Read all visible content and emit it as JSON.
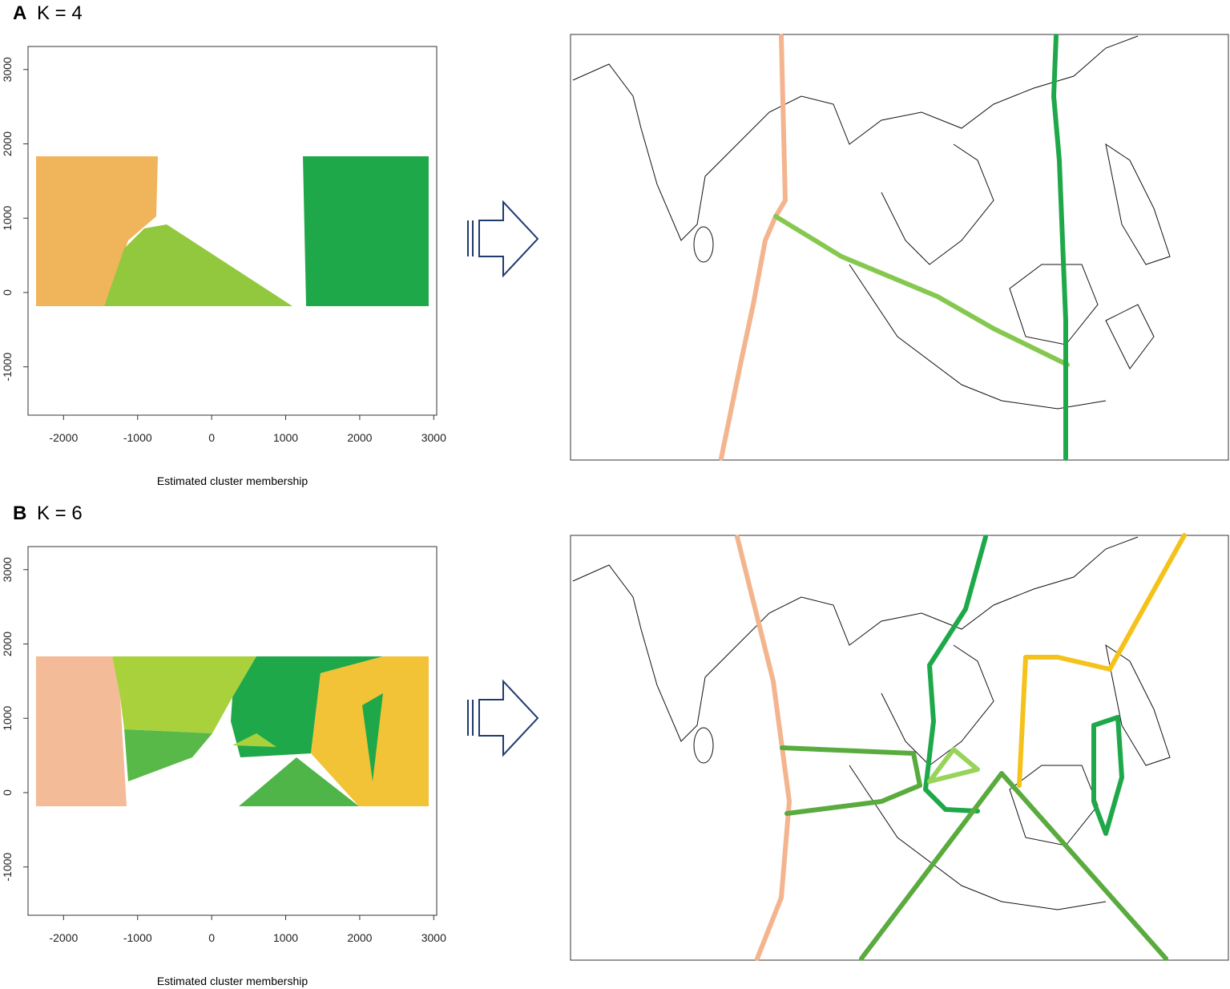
{
  "panels": [
    {
      "label": "A",
      "title": "K = 4",
      "plot": {
        "xlabel": "Estimated cluster membership",
        "xlim": [
          -2480,
          3040
        ],
        "ylim": [
          -1650,
          3310
        ],
        "xticks": [
          -2000,
          -1000,
          0,
          1000,
          2000,
          3000
        ],
        "yticks": [
          -1000,
          0,
          1000,
          2000,
          3000
        ]
      }
    },
    {
      "label": "B",
      "title": "K = 6",
      "plot": {
        "xlabel": "Estimated cluster membership",
        "xlim": [
          -2480,
          3040
        ],
        "ylim": [
          -1650,
          3310
        ],
        "xticks": [
          -2000,
          -1000,
          0,
          1000,
          2000,
          3000
        ],
        "yticks": [
          -1000,
          0,
          1000,
          2000,
          3000
        ]
      }
    }
  ]
}
